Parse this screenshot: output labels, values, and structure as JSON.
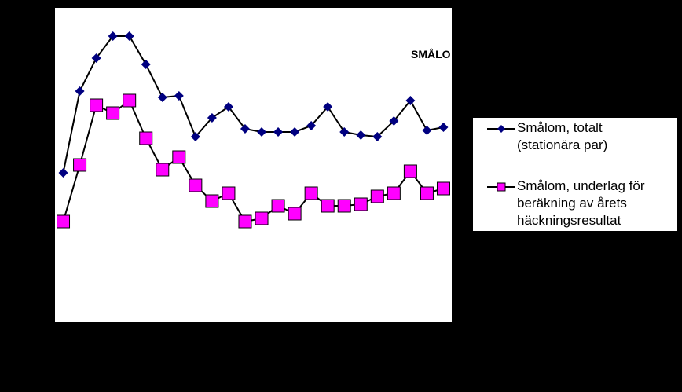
{
  "chart_data": {
    "type": "line",
    "title": "SMÅLO",
    "xlabel": "",
    "ylabel": "",
    "x": [
      1,
      2,
      3,
      4,
      5,
      6,
      7,
      8,
      9,
      10,
      11,
      12,
      13,
      14,
      15,
      16,
      17,
      18,
      19,
      20,
      21,
      22,
      23,
      24
    ],
    "ylim": [
      0,
      100
    ],
    "grid": false,
    "legend_position": "right",
    "series": [
      {
        "name": "Smålom, totalt\n(stationära par)",
        "marker": "diamond",
        "color": "#000080",
        "values": [
          47.5,
          73.5,
          84,
          91,
          91,
          82,
          71.5,
          72,
          59,
          65,
          68.5,
          61.5,
          60.5,
          60.5,
          60.5,
          62.5,
          68.5,
          60.5,
          59.5,
          59,
          64,
          70.5,
          61,
          62
        ]
      },
      {
        "name": "Smålom, underlag för\nberäkning av årets\nhäckningsresultat",
        "marker": "square",
        "color": "#ff00ff",
        "values": [
          32,
          50,
          69,
          66.5,
          70.5,
          58.5,
          48.5,
          52.5,
          43.5,
          38.5,
          41,
          32,
          33,
          37,
          34.5,
          41,
          37,
          37,
          37.5,
          40,
          41,
          48,
          41,
          42.5
        ]
      }
    ]
  }
}
